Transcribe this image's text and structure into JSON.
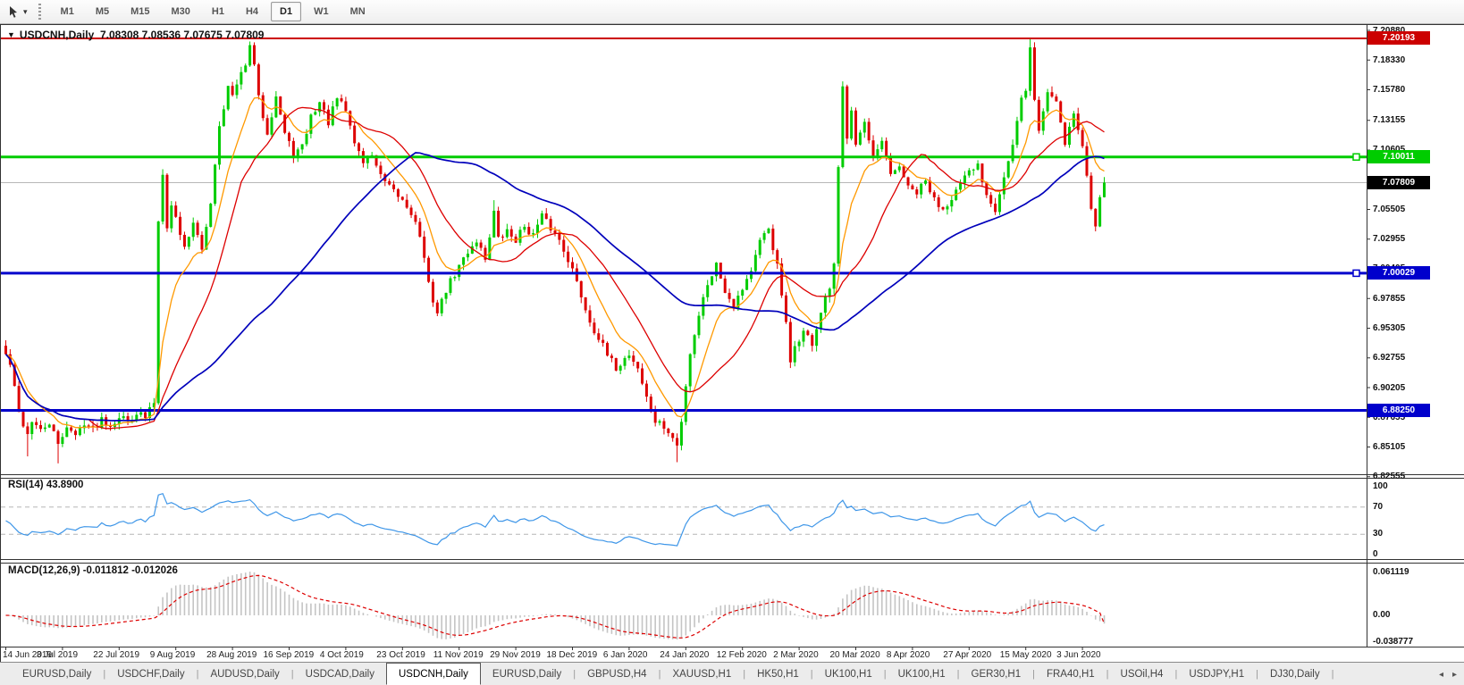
{
  "toolbar": {
    "timeframes": [
      "M1",
      "M5",
      "M15",
      "M30",
      "H1",
      "H4",
      "D1",
      "W1",
      "MN"
    ],
    "active_timeframe": "D1",
    "caret_icon": "▾"
  },
  "chart": {
    "menu_icon": "▼",
    "symbol": "USDCNH,Daily",
    "ohlc": "7.08308 7.08536 7.07675 7.07809",
    "price_axis_labels": [
      "7.20880",
      "7.18330",
      "7.15780",
      "7.13155",
      "7.10605",
      "7.05505",
      "7.02955",
      "7.00405",
      "6.97855",
      "6.95305",
      "6.92755",
      "6.90205",
      "6.87655",
      "6.85105",
      "6.82555"
    ],
    "current_price": {
      "value": 7.07809,
      "label": "7.07809",
      "line_color": "#b8b8b8",
      "badge_bg": "#000000"
    },
    "h_lines": [
      {
        "value": 7.20193,
        "label": "7.20193",
        "color": "#cc0000",
        "width": 2,
        "handle": false
      },
      {
        "value": 7.10011,
        "label": "7.10011",
        "color": "#00cc00",
        "width": 3,
        "handle": true
      },
      {
        "value": 7.00029,
        "label": "7.00029",
        "color": "#0000cc",
        "width": 3,
        "handle": true
      },
      {
        "value": 6.8825,
        "label": "6.88250",
        "color": "#0000cc",
        "width": 3,
        "handle": false
      }
    ],
    "date_axis_labels": [
      "14 Jun 2019",
      "3 Jul 2019",
      "22 Jul 2019",
      "9 Aug 2019",
      "28 Aug 2019",
      "16 Sep 2019",
      "4 Oct 2019",
      "23 Oct 2019",
      "11 Nov 2019",
      "29 Nov 2019",
      "18 Dec 2019",
      "6 Jan 2020",
      "24 Jan 2020",
      "12 Feb 2020",
      "2 Mar 2020",
      "20 Mar 2020",
      "8 Apr 2020",
      "27 Apr 2020",
      "15 May 2020",
      "3 Jun 2020"
    ]
  },
  "chart_data": {
    "type": "candlestick",
    "symbol": "USDCNH",
    "timeframe": "Daily",
    "candle_count": 253,
    "y_range": [
      6.8256,
      7.2088
    ],
    "up_color": "#00cc00",
    "down_color": "#dd0000",
    "first_open": 6.938,
    "close_anchors": [
      [
        0,
        6.93
      ],
      [
        1,
        6.922
      ],
      [
        3,
        6.88
      ],
      [
        5,
        6.862
      ],
      [
        6,
        6.874
      ],
      [
        8,
        6.864
      ],
      [
        10,
        6.872
      ],
      [
        12,
        6.852
      ],
      [
        14,
        6.87
      ],
      [
        16,
        6.86
      ],
      [
        18,
        6.873
      ],
      [
        20,
        6.866
      ],
      [
        22,
        6.876
      ],
      [
        24,
        6.87
      ],
      [
        26,
        6.878
      ],
      [
        28,
        6.873
      ],
      [
        30,
        6.881
      ],
      [
        32,
        6.876
      ],
      [
        34,
        6.89
      ],
      [
        35,
        7.045
      ],
      [
        36,
        7.088
      ],
      [
        37,
        7.042
      ],
      [
        38,
        7.058
      ],
      [
        39,
        7.048
      ],
      [
        41,
        7.022
      ],
      [
        43,
        7.045
      ],
      [
        45,
        7.018
      ],
      [
        47,
        7.062
      ],
      [
        49,
        7.128
      ],
      [
        51,
        7.16
      ],
      [
        52,
        7.152
      ],
      [
        54,
        7.17
      ],
      [
        56,
        7.193
      ],
      [
        57,
        7.18
      ],
      [
        58,
        7.15
      ],
      [
        60,
        7.122
      ],
      [
        62,
        7.153
      ],
      [
        64,
        7.12
      ],
      [
        66,
        7.102
      ],
      [
        68,
        7.108
      ],
      [
        70,
        7.135
      ],
      [
        72,
        7.147
      ],
      [
        74,
        7.13
      ],
      [
        76,
        7.15
      ],
      [
        78,
        7.14
      ],
      [
        80,
        7.113
      ],
      [
        82,
        7.096
      ],
      [
        84,
        7.103
      ],
      [
        86,
        7.083
      ],
      [
        88,
        7.073
      ],
      [
        91,
        7.063
      ],
      [
        93,
        7.053
      ],
      [
        95,
        7.033
      ],
      [
        97,
        6.99
      ],
      [
        99,
        6.966
      ],
      [
        101,
        6.986
      ],
      [
        104,
        7.006
      ],
      [
        106,
        7.019
      ],
      [
        108,
        7.029
      ],
      [
        110,
        7.013
      ],
      [
        112,
        7.053
      ],
      [
        113,
        7.029
      ],
      [
        115,
        7.036
      ],
      [
        117,
        7.029
      ],
      [
        119,
        7.041
      ],
      [
        121,
        7.033
      ],
      [
        123,
        7.049
      ],
      [
        125,
        7.039
      ],
      [
        127,
        7.029
      ],
      [
        129,
        7.013
      ],
      [
        130,
        7.003
      ],
      [
        132,
        6.981
      ],
      [
        134,
        6.959
      ],
      [
        136,
        6.945
      ],
      [
        138,
        6.929
      ],
      [
        140,
        6.919
      ],
      [
        143,
        6.931
      ],
      [
        145,
        6.919
      ],
      [
        147,
        6.893
      ],
      [
        149,
        6.873
      ],
      [
        151,
        6.868
      ],
      [
        153,
        6.858
      ],
      [
        154,
        6.852
      ],
      [
        155,
        6.872
      ],
      [
        156,
        6.905
      ],
      [
        157,
        6.932
      ],
      [
        159,
        6.965
      ],
      [
        161,
        6.992
      ],
      [
        163,
        7.008
      ],
      [
        165,
        6.986
      ],
      [
        167,
        6.973
      ],
      [
        169,
        6.988
      ],
      [
        171,
        7.003
      ],
      [
        173,
        7.026
      ],
      [
        175,
        7.039
      ],
      [
        177,
        7.006
      ],
      [
        179,
        6.956
      ],
      [
        180,
        6.921
      ],
      [
        181,
        6.938
      ],
      [
        183,
        6.95
      ],
      [
        185,
        6.94
      ],
      [
        187,
        6.966
      ],
      [
        189,
        6.987
      ],
      [
        190,
        7.006
      ],
      [
        191,
        7.089
      ],
      [
        192,
        7.159
      ],
      [
        193,
        7.119
      ],
      [
        194,
        7.143
      ],
      [
        195,
        7.113
      ],
      [
        197,
        7.129
      ],
      [
        199,
        7.096
      ],
      [
        201,
        7.113
      ],
      [
        203,
        7.083
      ],
      [
        205,
        7.093
      ],
      [
        207,
        7.073
      ],
      [
        209,
        7.069
      ],
      [
        211,
        7.079
      ],
      [
        213,
        7.063
      ],
      [
        215,
        7.056
      ],
      [
        217,
        7.066
      ],
      [
        219,
        7.076
      ],
      [
        221,
        7.086
      ],
      [
        223,
        7.093
      ],
      [
        225,
        7.069
      ],
      [
        227,
        7.056
      ],
      [
        229,
        7.083
      ],
      [
        231,
        7.109
      ],
      [
        233,
        7.149
      ],
      [
        234,
        7.159
      ],
      [
        235,
        7.193
      ],
      [
        236,
        7.149
      ],
      [
        237,
        7.123
      ],
      [
        239,
        7.156
      ],
      [
        241,
        7.149
      ],
      [
        243,
        7.113
      ],
      [
        245,
        7.139
      ],
      [
        246,
        7.123
      ],
      [
        247,
        7.109
      ],
      [
        248,
        7.083
      ],
      [
        249,
        7.056
      ],
      [
        250,
        7.043
      ],
      [
        251,
        7.069
      ],
      [
        252,
        7.078
      ]
    ],
    "wick_overrides": [
      {
        "i": 5,
        "low": 6.843
      },
      {
        "i": 12,
        "low": 6.837
      },
      {
        "i": 35,
        "low": 6.888
      },
      {
        "i": 56,
        "high": 7.199
      },
      {
        "i": 112,
        "high": 7.063
      },
      {
        "i": 154,
        "low": 6.838
      },
      {
        "i": 192,
        "high": 7.165
      },
      {
        "i": 235,
        "high": 7.2015
      }
    ],
    "moving_averages": [
      {
        "name": "fast",
        "period": 10,
        "type": "ema",
        "color": "#ff9900"
      },
      {
        "name": "mid",
        "period": 20,
        "type": "sma",
        "color": "#dd0000"
      },
      {
        "name": "slow",
        "period": 60,
        "type": "sma",
        "color": "#0000bb"
      }
    ]
  },
  "rsi_panel": {
    "label": "RSI(14) 43.8900",
    "period": 14,
    "value": 43.89,
    "line_color": "#3e96e8",
    "levels": [
      {
        "label": "100",
        "value": 100,
        "dashed": false
      },
      {
        "label": "70",
        "value": 70,
        "dashed": true
      },
      {
        "label": "30",
        "value": 30,
        "dashed": true
      },
      {
        "label": "0",
        "value": 0,
        "dashed": false
      }
    ]
  },
  "macd_panel": {
    "label": "MACD(12,26,9) -0.011812 -0.012026",
    "macd_value": -0.011812,
    "signal_value": -0.012026,
    "histogram_color": "#c4c4c4",
    "signal_color": "#dd0000",
    "axis_labels": [
      {
        "label": "0.061119",
        "value": 0.061119
      },
      {
        "label": "0.00",
        "value": 0.0
      },
      {
        "label": "-0.038777",
        "value": -0.038777
      }
    ]
  },
  "tab_bar": {
    "tabs": [
      "EURUSD,Daily",
      "USDCHF,Daily",
      "AUDUSD,Daily",
      "USDCAD,Daily",
      "USDCNH,Daily",
      "EURUSD,Daily",
      "GBPUSD,H4",
      "XAUUSD,H1",
      "HK50,H1",
      "UK100,H1",
      "UK100,H1",
      "GER30,H1",
      "FRA40,H1",
      "USOil,H4",
      "USDJPY,H1",
      "DJ30,Daily"
    ],
    "active_index": 4,
    "separator": "|",
    "scroll_left_icon": "◂",
    "scroll_right_icon": "▸"
  }
}
